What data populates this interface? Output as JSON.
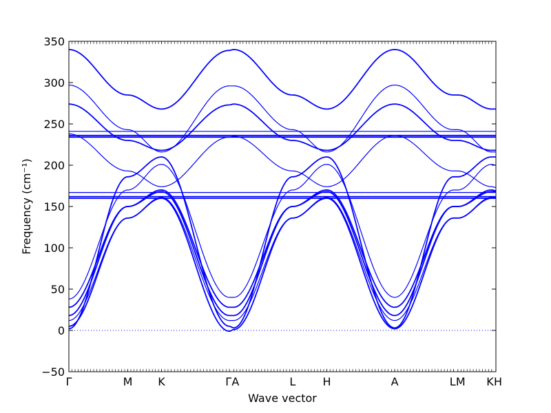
{
  "chart_data": {
    "type": "line",
    "xlabel": "Wave vector",
    "ylabel": "Frequency (cm⁻¹)",
    "ylim": [
      -50,
      350
    ],
    "yticks": [
      -50,
      0,
      50,
      100,
      150,
      200,
      250,
      300,
      350
    ],
    "grid": false,
    "legend": "none",
    "line_color": "#0000ff",
    "zero_line": {
      "y": 0,
      "style": "dotted",
      "color": "#0000ff"
    },
    "high_symmetry_points": [
      {
        "label": "Γ",
        "x": 0.0
      },
      {
        "label": "M",
        "x": 0.138
      },
      {
        "label": "K",
        "x": 0.217
      },
      {
        "label": "Γ",
        "x": 0.376
      },
      {
        "label": "A",
        "x": 0.386
      },
      {
        "label": "L",
        "x": 0.524
      },
      {
        "label": "H",
        "x": 0.604
      },
      {
        "label": "A",
        "x": 0.763
      },
      {
        "label": "L",
        "x": 0.901
      },
      {
        "label": "M",
        "x": 0.911
      },
      {
        "label": "K",
        "x": 0.99
      },
      {
        "label": "H",
        "x": 1.0
      }
    ],
    "xlim": [
      0,
      1
    ],
    "series": [
      {
        "width": 1.8,
        "values": [
          [
            0,
            340
          ],
          [
            0.138,
            285
          ],
          [
            0.217,
            268
          ],
          [
            0.376,
            339
          ],
          [
            0.386,
            340
          ],
          [
            0.524,
            285
          ],
          [
            0.604,
            268
          ],
          [
            0.763,
            340
          ],
          [
            0.901,
            285
          ],
          [
            0.911,
            285
          ],
          [
            0.99,
            268
          ],
          [
            1.0,
            268
          ]
        ]
      },
      {
        "width": 1.2,
        "values": [
          [
            0,
            297
          ],
          [
            0.138,
            243
          ],
          [
            0.217,
            216
          ],
          [
            0.376,
            296
          ],
          [
            0.386,
            296
          ],
          [
            0.524,
            243
          ],
          [
            0.604,
            216
          ],
          [
            0.763,
            297
          ],
          [
            0.901,
            243
          ],
          [
            0.911,
            243
          ],
          [
            0.99,
            216
          ],
          [
            1.0,
            216
          ]
        ]
      },
      {
        "width": 1.8,
        "values": [
          [
            0,
            274
          ],
          [
            0.138,
            230
          ],
          [
            0.217,
            218
          ],
          [
            0.376,
            273
          ],
          [
            0.386,
            274
          ],
          [
            0.524,
            230
          ],
          [
            0.604,
            218
          ],
          [
            0.763,
            274
          ],
          [
            0.901,
            230
          ],
          [
            0.911,
            230
          ],
          [
            0.99,
            218
          ],
          [
            1.0,
            218
          ]
        ]
      },
      {
        "width": 1.2,
        "values": [
          [
            0,
            241
          ],
          [
            0.138,
            241
          ],
          [
            0.217,
            241
          ],
          [
            0.376,
            241
          ],
          [
            0.386,
            241
          ],
          [
            0.524,
            241
          ],
          [
            0.604,
            241
          ],
          [
            0.763,
            241
          ],
          [
            0.901,
            241
          ],
          [
            0.911,
            241
          ],
          [
            0.99,
            241
          ],
          [
            1.0,
            241
          ]
        ]
      },
      {
        "width": 1.8,
        "values": [
          [
            0,
            236
          ],
          [
            0.138,
            236
          ],
          [
            0.217,
            236
          ],
          [
            0.376,
            236
          ],
          [
            0.386,
            236
          ],
          [
            0.524,
            236
          ],
          [
            0.604,
            236
          ],
          [
            0.763,
            236
          ],
          [
            0.901,
            236
          ],
          [
            0.911,
            236
          ],
          [
            0.99,
            236
          ],
          [
            1.0,
            236
          ]
        ]
      },
      {
        "width": 1.8,
        "values": [
          [
            0,
            234
          ],
          [
            0.138,
            234
          ],
          [
            0.217,
            234
          ],
          [
            0.376,
            234
          ],
          [
            0.386,
            234
          ],
          [
            0.524,
            234
          ],
          [
            0.604,
            234
          ],
          [
            0.763,
            234
          ],
          [
            0.901,
            234
          ],
          [
            0.911,
            234
          ],
          [
            0.99,
            234
          ],
          [
            1.0,
            234
          ]
        ]
      },
      {
        "width": 1.2,
        "values": [
          [
            0,
            238
          ],
          [
            0.138,
            193
          ],
          [
            0.217,
            174
          ],
          [
            0.376,
            234
          ],
          [
            0.386,
            235
          ],
          [
            0.524,
            193
          ],
          [
            0.604,
            174
          ],
          [
            0.763,
            236
          ],
          [
            0.901,
            193
          ],
          [
            0.911,
            193
          ],
          [
            0.99,
            174
          ],
          [
            1.0,
            173
          ]
        ]
      },
      {
        "width": 1.8,
        "values": [
          [
            0,
            2
          ],
          [
            0.138,
            186
          ],
          [
            0.217,
            210
          ],
          [
            0.376,
            5
          ],
          [
            0.386,
            3
          ],
          [
            0.524,
            186
          ],
          [
            0.604,
            210
          ],
          [
            0.763,
            3
          ],
          [
            0.901,
            186
          ],
          [
            0.911,
            186
          ],
          [
            0.99,
            210
          ],
          [
            1.0,
            210
          ]
        ]
      },
      {
        "width": 1.2,
        "values": [
          [
            0,
            38
          ],
          [
            0.138,
            170
          ],
          [
            0.217,
            201
          ],
          [
            0.376,
            40
          ],
          [
            0.386,
            40
          ],
          [
            0.524,
            170
          ],
          [
            0.604,
            201
          ],
          [
            0.763,
            40
          ],
          [
            0.901,
            170
          ],
          [
            0.911,
            170
          ],
          [
            0.99,
            201
          ],
          [
            1.0,
            200
          ]
        ]
      },
      {
        "width": 1.2,
        "values": [
          [
            0,
            167
          ],
          [
            0.138,
            167
          ],
          [
            0.217,
            167
          ],
          [
            0.376,
            167
          ],
          [
            0.386,
            167
          ],
          [
            0.524,
            167
          ],
          [
            0.604,
            167
          ],
          [
            0.763,
            167
          ],
          [
            0.901,
            167
          ],
          [
            0.911,
            167
          ],
          [
            0.99,
            167
          ],
          [
            1.0,
            167
          ]
        ]
      },
      {
        "width": 1.8,
        "values": [
          [
            0,
            162
          ],
          [
            0.138,
            162
          ],
          [
            0.217,
            162
          ],
          [
            0.376,
            162
          ],
          [
            0.386,
            162
          ],
          [
            0.524,
            162
          ],
          [
            0.604,
            162
          ],
          [
            0.763,
            162
          ],
          [
            0.901,
            162
          ],
          [
            0.911,
            162
          ],
          [
            0.99,
            162
          ],
          [
            1.0,
            162
          ]
        ]
      },
      {
        "width": 1.8,
        "values": [
          [
            0,
            160
          ],
          [
            0.138,
            160
          ],
          [
            0.217,
            160
          ],
          [
            0.376,
            160
          ],
          [
            0.386,
            160
          ],
          [
            0.524,
            160
          ],
          [
            0.604,
            160
          ],
          [
            0.763,
            160
          ],
          [
            0.901,
            160
          ],
          [
            0.911,
            160
          ],
          [
            0.99,
            160
          ],
          [
            1.0,
            160
          ]
        ]
      },
      {
        "width": 1.8,
        "values": [
          [
            0,
            28
          ],
          [
            0.138,
            150
          ],
          [
            0.217,
            170
          ],
          [
            0.376,
            28
          ],
          [
            0.386,
            28
          ],
          [
            0.524,
            150
          ],
          [
            0.604,
            170
          ],
          [
            0.763,
            28
          ],
          [
            0.901,
            150
          ],
          [
            0.911,
            150
          ],
          [
            0.99,
            170
          ],
          [
            1.0,
            169
          ]
        ]
      },
      {
        "width": 1.8,
        "values": [
          [
            0,
            18
          ],
          [
            0.138,
            150
          ],
          [
            0.217,
            168
          ],
          [
            0.376,
            18
          ],
          [
            0.386,
            18
          ],
          [
            0.524,
            150
          ],
          [
            0.604,
            168
          ],
          [
            0.763,
            18
          ],
          [
            0.901,
            150
          ],
          [
            0.911,
            150
          ],
          [
            0.99,
            168
          ],
          [
            1.0,
            168
          ]
        ]
      },
      {
        "width": 1.2,
        "values": [
          [
            0,
            12
          ],
          [
            0.138,
            136
          ],
          [
            0.217,
            161
          ],
          [
            0.376,
            12
          ],
          [
            0.386,
            12
          ],
          [
            0.524,
            136
          ],
          [
            0.604,
            161
          ],
          [
            0.763,
            12
          ],
          [
            0.901,
            136
          ],
          [
            0.911,
            136
          ],
          [
            0.99,
            161
          ],
          [
            1.0,
            161
          ]
        ]
      },
      {
        "width": 1.8,
        "values": [
          [
            0,
            5
          ],
          [
            0.138,
            136
          ],
          [
            0.217,
            160
          ],
          [
            0.376,
            -1
          ],
          [
            0.386,
            1
          ],
          [
            0.524,
            136
          ],
          [
            0.604,
            160
          ],
          [
            0.763,
            2
          ],
          [
            0.901,
            136
          ],
          [
            0.911,
            136
          ],
          [
            0.99,
            160
          ],
          [
            1.0,
            160
          ]
        ]
      }
    ]
  }
}
